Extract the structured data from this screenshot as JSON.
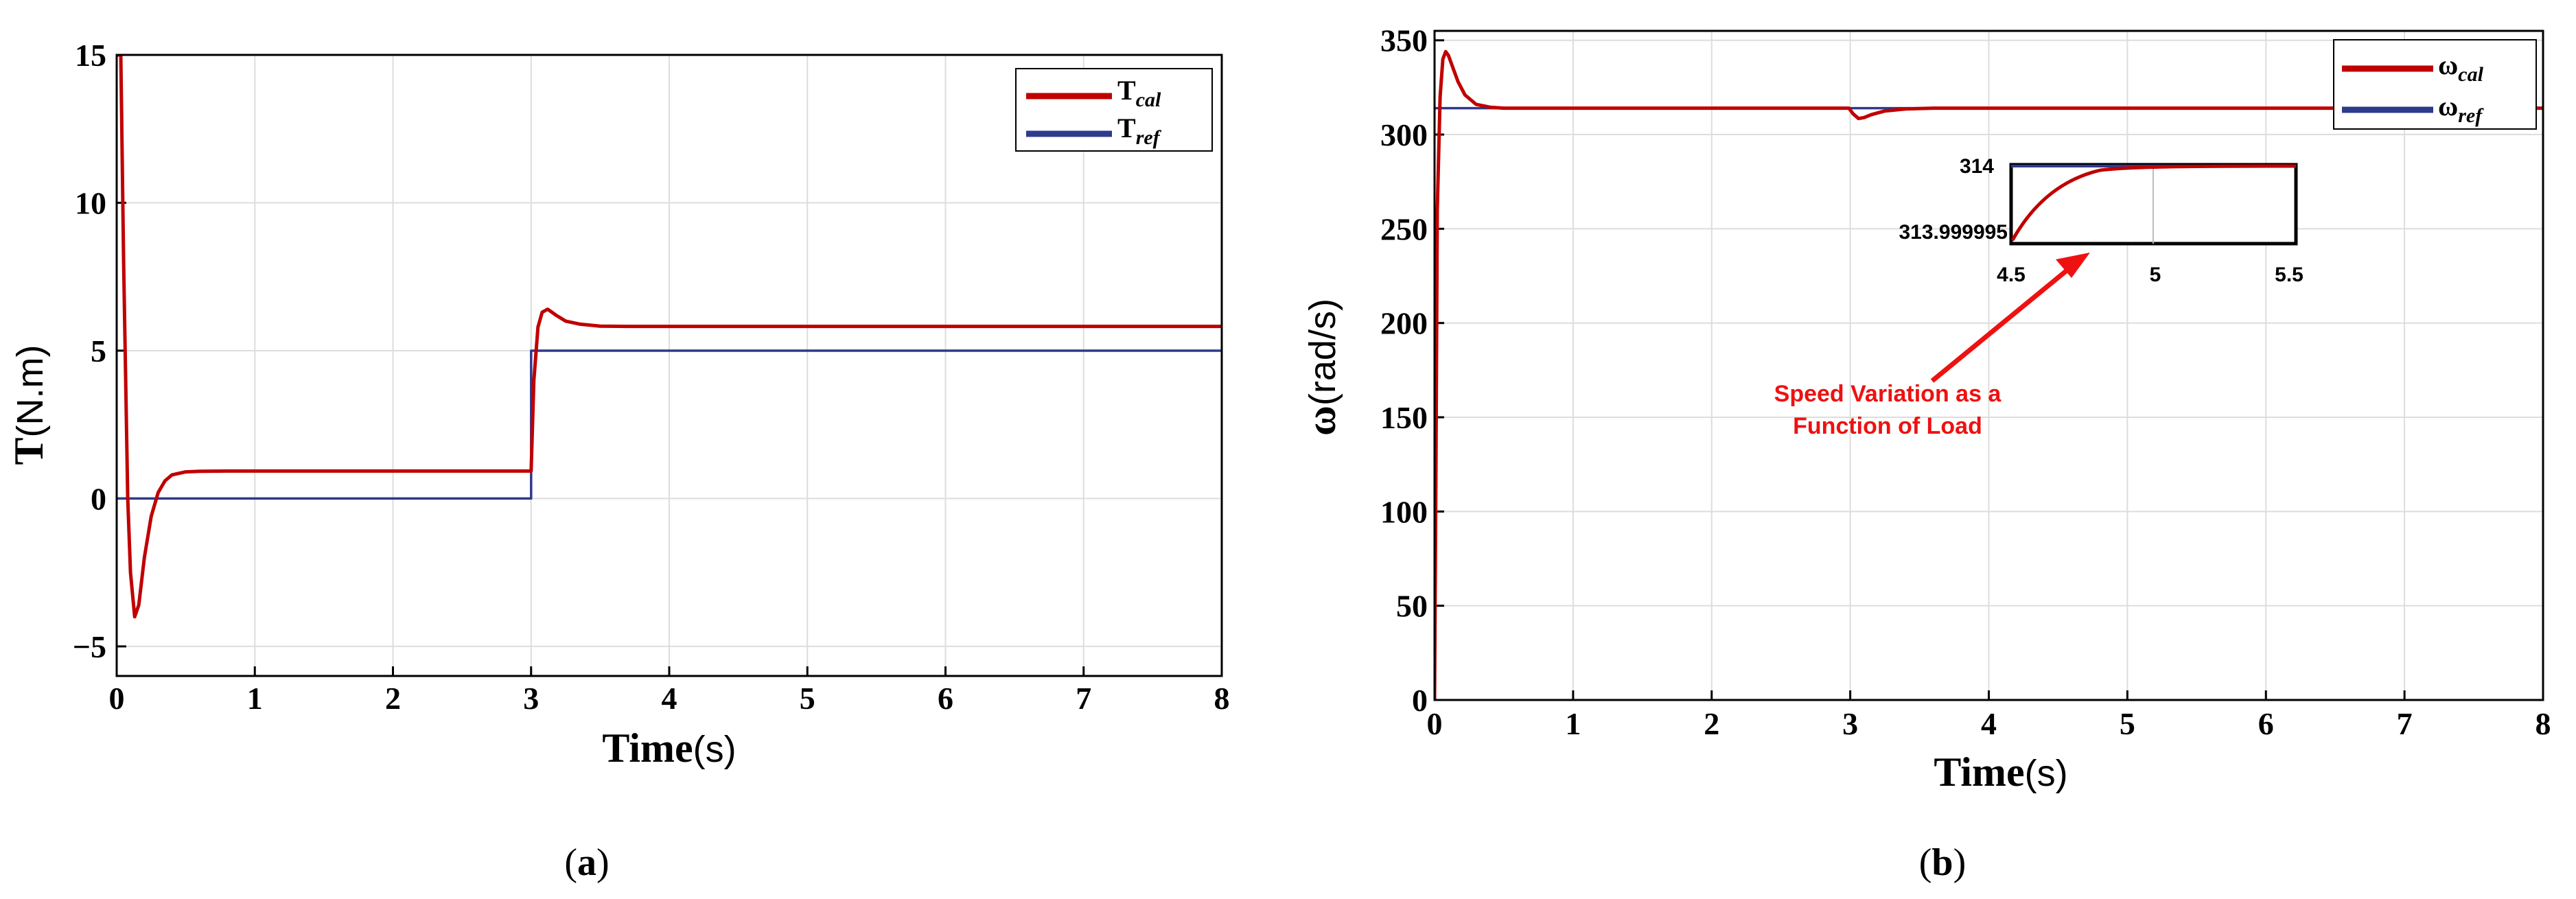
{
  "colors": {
    "cal": "#c00000",
    "ref": "#2e3a8c",
    "annotation": "#ee1111",
    "grid": "#dddddd"
  },
  "chart_data": [
    {
      "type": "line",
      "panel_label": "a",
      "ylabel_symbol": "T",
      "ylabel_unit": "(N.m)",
      "xlabel_word": "Time",
      "xlabel_unit": "(s)",
      "xlim": [
        0,
        8
      ],
      "ylim": [
        -6,
        15
      ],
      "xticks": [
        "0",
        "1",
        "2",
        "3",
        "4",
        "5",
        "6",
        "7",
        "8"
      ],
      "yticks": [
        {
          "v": -5,
          "label": "−5"
        },
        {
          "v": 0,
          "label": "0"
        },
        {
          "v": 5,
          "label": "5"
        },
        {
          "v": 10,
          "label": "10"
        },
        {
          "v": 15,
          "label": "15"
        }
      ],
      "grid": true,
      "legend_position": "top-right",
      "series": [
        {
          "name_main": "T",
          "name_sub": "cal",
          "color": "#c00000",
          "x": [
            0,
            0.01,
            0.03,
            0.05,
            0.08,
            0.1,
            0.13,
            0.16,
            0.2,
            0.25,
            0.3,
            0.35,
            0.4,
            0.5,
            0.6,
            0.8,
            1.0,
            2.0,
            2.99,
            3.0,
            3.02,
            3.05,
            3.08,
            3.12,
            3.18,
            3.25,
            3.35,
            3.5,
            3.7,
            4.0,
            5.0,
            6.0,
            7.0,
            8.0
          ],
          "y": [
            15,
            15,
            15,
            8,
            0,
            -2.5,
            -4.0,
            -3.6,
            -2.0,
            -0.6,
            0.2,
            0.6,
            0.8,
            0.9,
            0.92,
            0.93,
            0.93,
            0.93,
            0.93,
            0.93,
            4.0,
            5.8,
            6.3,
            6.4,
            6.2,
            6.0,
            5.9,
            5.83,
            5.82,
            5.82,
            5.82,
            5.82,
            5.82,
            5.82
          ]
        },
        {
          "name_main": "T",
          "name_sub": "ref",
          "color": "#2e3a8c",
          "x": [
            0,
            3.0,
            3.0,
            8.0
          ],
          "y": [
            0,
            0,
            5,
            5
          ]
        }
      ]
    },
    {
      "type": "line",
      "panel_label": "b",
      "ylabel_symbol": "ω",
      "ylabel_unit": "(rad/s)",
      "xlabel_word": "Time",
      "xlabel_unit": "(s)",
      "xlim": [
        0,
        8
      ],
      "ylim": [
        0,
        355
      ],
      "xticks": [
        "0",
        "1",
        "2",
        "3",
        "4",
        "5",
        "6",
        "7",
        "8"
      ],
      "yticks": [
        {
          "v": 0,
          "label": "0"
        },
        {
          "v": 50,
          "label": "50"
        },
        {
          "v": 100,
          "label": "100"
        },
        {
          "v": 150,
          "label": "150"
        },
        {
          "v": 200,
          "label": "200"
        },
        {
          "v": 250,
          "label": "250"
        },
        {
          "v": 300,
          "label": "300"
        },
        {
          "v": 350,
          "label": "350"
        }
      ],
      "grid": true,
      "legend_position": "top-right",
      "series": [
        {
          "name_main": "ω",
          "name_sub": "cal",
          "color": "#c00000",
          "x": [
            0,
            0.01,
            0.02,
            0.04,
            0.06,
            0.08,
            0.1,
            0.13,
            0.17,
            0.22,
            0.3,
            0.4,
            0.5,
            0.6,
            1.0,
            2.0,
            2.99,
            3.02,
            3.06,
            3.1,
            3.15,
            3.25,
            3.4,
            3.6,
            4.0,
            5.0,
            6.0,
            7.0,
            8.0
          ],
          "y": [
            0,
            120,
            260,
            320,
            340,
            344,
            342,
            336,
            328,
            321,
            316,
            314.5,
            314,
            314,
            314,
            314,
            314,
            311,
            308.5,
            309,
            310.5,
            312.5,
            313.6,
            314,
            314,
            314,
            314,
            314,
            314
          ]
        },
        {
          "name_main": "ω",
          "name_sub": "ref",
          "color": "#2e3a8c",
          "x": [
            0,
            8
          ],
          "y": [
            314,
            314
          ]
        }
      ],
      "inset": {
        "xticks": [
          "4.5",
          "5",
          "5.5"
        ],
        "yticks": [
          "314",
          "313.999995"
        ]
      },
      "annotation": {
        "line1": "Speed Variation as a",
        "line2": "Function of Load"
      }
    }
  ]
}
